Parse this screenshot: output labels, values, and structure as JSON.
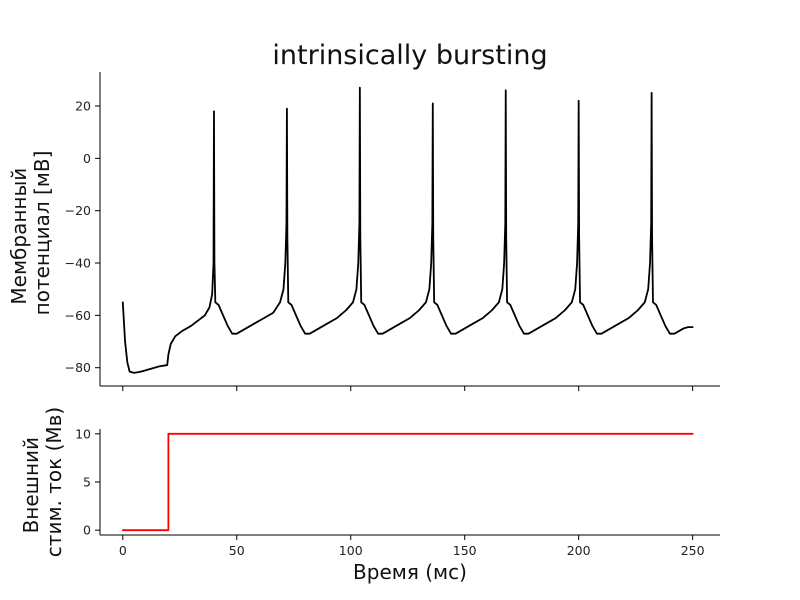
{
  "chart_data": [
    {
      "type": "line",
      "title": "intrinsically bursting",
      "xlabel": "",
      "ylabel_lines": [
        "Мембранный",
        "потенциал [мВ]"
      ],
      "xlim": [
        -10,
        262
      ],
      "ylim": [
        -87,
        33
      ],
      "xticks": [
        0,
        50,
        100,
        150,
        200,
        250
      ],
      "xtick_labels_shown": false,
      "yticks": [
        20,
        0,
        -20,
        -40,
        -60,
        -80
      ],
      "grid": false,
      "legend": "none",
      "series": [
        {
          "color": "#000000",
          "x": [
            0,
            1,
            2,
            3,
            5,
            8,
            12,
            16,
            19.5,
            20,
            21,
            23,
            26,
            30,
            33,
            36,
            38,
            39.2,
            39.8,
            40,
            40.2,
            40.6,
            42,
            44,
            46,
            48,
            50,
            52,
            54,
            56,
            58,
            62,
            66,
            69,
            70.5,
            71.3,
            71.8,
            72,
            72.2,
            72.6,
            74,
            76,
            78,
            80,
            82,
            84,
            86,
            88,
            90,
            94,
            98,
            101,
            102.5,
            103.3,
            103.8,
            104,
            104.2,
            104.6,
            106,
            108,
            110,
            112,
            114,
            116,
            118,
            120,
            122,
            126,
            130,
            133,
            134.5,
            135.3,
            135.8,
            136,
            136.2,
            136.6,
            138,
            140,
            142,
            144,
            146,
            148,
            150,
            152,
            154,
            158,
            162,
            165,
            166.5,
            167.3,
            167.8,
            168,
            168.2,
            168.6,
            170,
            172,
            174,
            176,
            178,
            180,
            182,
            184,
            186,
            190,
            194,
            197,
            198.5,
            199.3,
            199.8,
            200,
            200.2,
            200.6,
            202,
            204,
            206,
            208,
            210,
            212,
            214,
            216,
            218,
            222,
            226,
            229,
            230.5,
            231.3,
            231.8,
            232,
            232.2,
            232.6,
            234,
            236,
            238,
            240,
            242,
            244,
            246,
            248,
            250
          ],
          "y": [
            -55,
            -70,
            -78,
            -81.5,
            -82,
            -81.5,
            -80.5,
            -79.5,
            -79,
            -75,
            -71,
            -68,
            -66,
            -64,
            -62,
            -60,
            -57,
            -52,
            -40,
            18,
            -40,
            -55,
            -56,
            -60,
            -64,
            -67,
            -67,
            -66,
            -65,
            -64,
            -63,
            -61,
            -59,
            -55,
            -50,
            -40,
            -25,
            19,
            -30,
            -55,
            -56,
            -60,
            -64,
            -67,
            -67,
            -66,
            -65,
            -64,
            -63,
            -61,
            -58,
            -55,
            -50,
            -40,
            -25,
            27,
            -30,
            -55,
            -56,
            -60,
            -64,
            -67,
            -67,
            -66,
            -65,
            -64,
            -63,
            -61,
            -58,
            -55,
            -50,
            -40,
            -25,
            21,
            -30,
            -55,
            -56,
            -60,
            -64,
            -67,
            -67,
            -66,
            -65,
            -64,
            -63,
            -61,
            -58,
            -55,
            -50,
            -40,
            -25,
            26,
            -30,
            -55,
            -56,
            -60,
            -64,
            -67,
            -67,
            -66,
            -65,
            -64,
            -63,
            -61,
            -58,
            -55,
            -50,
            -40,
            -25,
            22,
            -30,
            -55,
            -56,
            -60,
            -64,
            -67,
            -67,
            -66,
            -65,
            -64,
            -63,
            -61,
            -58,
            -55,
            -50,
            -40,
            -25,
            25,
            -30,
            -55,
            -56,
            -60,
            -64,
            -67,
            -67,
            -66,
            -65,
            -64.5,
            -64.5
          ]
        }
      ]
    },
    {
      "type": "line",
      "title": "",
      "xlabel": "Время (мс)",
      "ylabel_lines": [
        "Внешний",
        "стим. ток (Мв)"
      ],
      "xlim": [
        -10,
        262
      ],
      "ylim": [
        -0.5,
        10.5
      ],
      "xticks": [
        0,
        50,
        100,
        150,
        200,
        250
      ],
      "xtick_labels_shown": true,
      "yticks": [
        10,
        5,
        0
      ],
      "grid": false,
      "legend": "none",
      "series": [
        {
          "color": "#ff0000",
          "x": [
            0,
            20,
            20,
            250
          ],
          "y": [
            0,
            0,
            10,
            10
          ]
        }
      ]
    }
  ]
}
